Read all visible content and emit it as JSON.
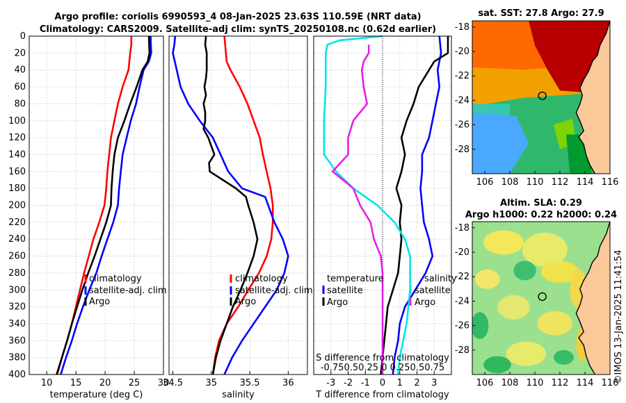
{
  "title_line1": "Argo profile: coriolis 6990593_4 08-Jan-2025 23.63S 110.59E (NRT data)",
  "title_line2": "Climatology: CARS2009. Satellite-adj clim: synTS_20250108.nc (0.62d earlier)",
  "footer": "©IMOS 13-Jan-2025 11:41:54",
  "colors": {
    "climatology": "#ff0000",
    "satellite": "#0000ff",
    "argo": "#000000",
    "s_satellite": "#00e5e5",
    "s_argo": "#e61ee6"
  },
  "chart_data": [
    {
      "id": "temperature",
      "type": "line",
      "xlabel": "temperature (deg C)",
      "ylabel": "depth",
      "xlim": [
        7,
        30
      ],
      "ylim": [
        0,
        400
      ],
      "xticks": [
        10,
        15,
        20,
        25,
        30
      ],
      "yticks": [
        0,
        20,
        40,
        60,
        80,
        100,
        120,
        140,
        160,
        180,
        200,
        220,
        240,
        260,
        280,
        300,
        320,
        340,
        360,
        380,
        400
      ],
      "legend": [
        "climatology",
        "satellite-adj. clim",
        "Argo"
      ],
      "series": [
        {
          "name": "climatology",
          "color": "#ff0000",
          "points": [
            [
              24.5,
              0
            ],
            [
              24.5,
              10
            ],
            [
              24.3,
              20
            ],
            [
              24.0,
              40
            ],
            [
              23.0,
              60
            ],
            [
              22.2,
              80
            ],
            [
              21.6,
              100
            ],
            [
              21.0,
              120
            ],
            [
              20.7,
              140
            ],
            [
              20.4,
              160
            ],
            [
              20.2,
              180
            ],
            [
              19.9,
              200
            ],
            [
              19.0,
              220
            ],
            [
              18.0,
              240
            ],
            [
              17.2,
              260
            ],
            [
              16.4,
              280
            ],
            [
              15.7,
              300
            ],
            [
              15.0,
              320
            ],
            [
              14.3,
              340
            ],
            [
              13.5,
              360
            ],
            [
              12.6,
              380
            ],
            [
              11.8,
              400
            ]
          ]
        },
        {
          "name": "satellite-adj. clim",
          "color": "#0000ff",
          "points": [
            [
              27.8,
              0
            ],
            [
              27.9,
              20
            ],
            [
              27.5,
              30
            ],
            [
              26.6,
              40
            ],
            [
              25.9,
              60
            ],
            [
              25.3,
              80
            ],
            [
              24.4,
              100
            ],
            [
              23.7,
              120
            ],
            [
              23.0,
              140
            ],
            [
              22.7,
              160
            ],
            [
              22.4,
              180
            ],
            [
              22.2,
              200
            ],
            [
              21.4,
              220
            ],
            [
              20.4,
              240
            ],
            [
              19.4,
              260
            ],
            [
              18.5,
              280
            ],
            [
              17.3,
              300
            ],
            [
              16.2,
              320
            ],
            [
              15.2,
              340
            ],
            [
              14.3,
              360
            ],
            [
              13.3,
              380
            ],
            [
              12.4,
              400
            ]
          ]
        },
        {
          "name": "Argo",
          "color": "#000000",
          "points": [
            [
              27.5,
              0
            ],
            [
              27.6,
              20
            ],
            [
              27.3,
              30
            ],
            [
              26.4,
              40
            ],
            [
              25.4,
              60
            ],
            [
              24.3,
              80
            ],
            [
              23.3,
              100
            ],
            [
              22.2,
              120
            ],
            [
              21.6,
              140
            ],
            [
              21.3,
              160
            ],
            [
              21.1,
              180
            ],
            [
              21.0,
              200
            ],
            [
              20.2,
              220
            ],
            [
              19.2,
              240
            ],
            [
              18.2,
              260
            ],
            [
              17.1,
              280
            ],
            [
              16.1,
              300
            ],
            [
              15.2,
              320
            ],
            [
              14.3,
              340
            ],
            [
              13.5,
              360
            ],
            [
              12.6,
              380
            ],
            [
              11.7,
              400
            ]
          ]
        }
      ]
    },
    {
      "id": "salinity",
      "type": "line",
      "xlabel": "salinity",
      "ylabel": "depth",
      "xlim": [
        34.45,
        36.25
      ],
      "ylim": [
        0,
        400
      ],
      "xticks": [
        34.5,
        35,
        35.5,
        36
      ],
      "xticklabels": [
        "34.5",
        "35",
        "35.5",
        "36"
      ],
      "legend": [
        "climatology",
        "satellite-adj. clim",
        "Argo"
      ],
      "series": [
        {
          "name": "climatology",
          "color": "#ff0000",
          "points": [
            [
              35.17,
              0
            ],
            [
              35.19,
              20
            ],
            [
              35.2,
              30
            ],
            [
              35.25,
              40
            ],
            [
              35.37,
              60
            ],
            [
              35.47,
              80
            ],
            [
              35.55,
              100
            ],
            [
              35.63,
              120
            ],
            [
              35.67,
              140
            ],
            [
              35.72,
              160
            ],
            [
              35.77,
              180
            ],
            [
              35.8,
              200
            ],
            [
              35.8,
              220
            ],
            [
              35.78,
              240
            ],
            [
              35.72,
              260
            ],
            [
              35.62,
              280
            ],
            [
              35.48,
              300
            ],
            [
              35.35,
              320
            ],
            [
              35.2,
              340
            ],
            [
              35.1,
              360
            ],
            [
              35.05,
              380
            ],
            [
              35.02,
              400
            ]
          ]
        },
        {
          "name": "satellite-adj. clim",
          "color": "#0000ff",
          "points": [
            [
              34.53,
              0
            ],
            [
              34.52,
              10
            ],
            [
              34.5,
              20
            ],
            [
              34.55,
              40
            ],
            [
              34.6,
              60
            ],
            [
              34.7,
              80
            ],
            [
              34.85,
              100
            ],
            [
              35.02,
              120
            ],
            [
              35.12,
              140
            ],
            [
              35.22,
              160
            ],
            [
              35.4,
              180
            ],
            [
              35.7,
              190
            ],
            [
              35.82,
              220
            ],
            [
              35.93,
              240
            ],
            [
              36.0,
              260
            ],
            [
              35.95,
              280
            ],
            [
              35.85,
              300
            ],
            [
              35.7,
              320
            ],
            [
              35.55,
              340
            ],
            [
              35.4,
              360
            ],
            [
              35.27,
              380
            ],
            [
              35.17,
              400
            ]
          ]
        },
        {
          "name": "Argo",
          "color": "#000000",
          "points": [
            [
              34.93,
              0
            ],
            [
              34.92,
              10
            ],
            [
              34.94,
              20
            ],
            [
              34.94,
              40
            ],
            [
              34.93,
              50
            ],
            [
              34.91,
              60
            ],
            [
              34.93,
              70
            ],
            [
              34.9,
              80
            ],
            [
              34.92,
              90
            ],
            [
              34.92,
              100
            ],
            [
              34.9,
              110
            ],
            [
              34.96,
              120
            ],
            [
              35.0,
              130
            ],
            [
              35.04,
              140
            ],
            [
              34.97,
              150
            ],
            [
              34.98,
              160
            ],
            [
              35.15,
              170
            ],
            [
              35.32,
              180
            ],
            [
              35.45,
              190
            ],
            [
              35.48,
              200
            ],
            [
              35.55,
              220
            ],
            [
              35.6,
              240
            ],
            [
              35.55,
              260
            ],
            [
              35.47,
              280
            ],
            [
              35.38,
              300
            ],
            [
              35.28,
              320
            ],
            [
              35.2,
              340
            ],
            [
              35.12,
              360
            ],
            [
              35.06,
              380
            ],
            [
              35.02,
              400
            ]
          ]
        }
      ]
    },
    {
      "id": "difference",
      "type": "line",
      "xlabel": "T difference from climatology",
      "ylabel": "depth",
      "xlim": [
        -4,
        4
      ],
      "ylim": [
        0,
        400
      ],
      "xticks": [
        -3,
        -2,
        -1,
        0,
        1,
        2,
        3
      ],
      "xticklabels": [
        "-3",
        "-2",
        "-1",
        "0",
        "1",
        "2",
        "3"
      ],
      "top_axis_label": "S difference from climatology",
      "top_axis_ticks": "-0.750.50.25 0 0.250.50.75",
      "legend_left_header": "temperature",
      "legend_right_header": "salinity",
      "legend_left": [
        "satellite",
        "Argo"
      ],
      "legend_right": [
        "satellite",
        "Argo"
      ],
      "series": [
        {
          "name": "T satellite",
          "color": "#0000ff",
          "points": [
            [
              3.3,
              0
            ],
            [
              3.4,
              20
            ],
            [
              3.2,
              40
            ],
            [
              3.3,
              60
            ],
            [
              3.1,
              80
            ],
            [
              2.9,
              100
            ],
            [
              2.7,
              120
            ],
            [
              2.3,
              140
            ],
            [
              2.3,
              160
            ],
            [
              2.2,
              180
            ],
            [
              2.3,
              200
            ],
            [
              2.4,
              220
            ],
            [
              2.7,
              240
            ],
            [
              2.9,
              260
            ],
            [
              2.5,
              280
            ],
            [
              1.9,
              300
            ],
            [
              1.3,
              320
            ],
            [
              1.0,
              340
            ],
            [
              0.9,
              360
            ],
            [
              0.7,
              380
            ],
            [
              0.6,
              400
            ]
          ]
        },
        {
          "name": "T Argo",
          "color": "#000000",
          "points": [
            [
              3.8,
              0
            ],
            [
              3.8,
              20
            ],
            [
              3.0,
              30
            ],
            [
              2.4,
              50
            ],
            [
              2.1,
              60
            ],
            [
              1.8,
              80
            ],
            [
              1.4,
              100
            ],
            [
              1.1,
              120
            ],
            [
              1.3,
              140
            ],
            [
              1.1,
              160
            ],
            [
              0.8,
              180
            ],
            [
              1.1,
              200
            ],
            [
              1.0,
              220
            ],
            [
              1.1,
              240
            ],
            [
              1.0,
              260
            ],
            [
              0.9,
              280
            ],
            [
              0.6,
              300
            ],
            [
              0.3,
              320
            ],
            [
              0.2,
              340
            ],
            [
              0.1,
              360
            ],
            [
              0.0,
              380
            ],
            [
              -0.1,
              400
            ]
          ]
        },
        {
          "name": "S satellite",
          "color": "#00e5e5",
          "points": [
            [
              0.0,
              0
            ],
            [
              -2.5,
              5
            ],
            [
              -3.2,
              10
            ],
            [
              -3.3,
              20
            ],
            [
              -3.3,
              60
            ],
            [
              -3.4,
              100
            ],
            [
              -3.4,
              140
            ],
            [
              -2.7,
              160
            ],
            [
              -1.7,
              180
            ],
            [
              -0.3,
              200
            ],
            [
              0.7,
              220
            ],
            [
              1.3,
              240
            ],
            [
              1.6,
              260
            ],
            [
              1.6,
              280
            ],
            [
              1.6,
              300
            ],
            [
              1.5,
              320
            ],
            [
              1.4,
              340
            ],
            [
              1.2,
              360
            ],
            [
              1.0,
              380
            ],
            [
              0.9,
              400
            ]
          ]
        },
        {
          "name": "S Argo",
          "color": "#e61ee6",
          "points": [
            [
              -0.8,
              10
            ],
            [
              -0.8,
              20
            ],
            [
              -1.1,
              30
            ],
            [
              -1.2,
              40
            ],
            [
              -1.1,
              60
            ],
            [
              -0.9,
              80
            ],
            [
              -1.7,
              100
            ],
            [
              -2.0,
              120
            ],
            [
              -2.0,
              140
            ],
            [
              -2.9,
              160
            ],
            [
              -1.7,
              180
            ],
            [
              -1.3,
              200
            ],
            [
              -0.7,
              220
            ],
            [
              -0.5,
              240
            ],
            [
              -0.1,
              260
            ],
            [
              0.0,
              280
            ],
            [
              0.0,
              300
            ],
            [
              0.0,
              320
            ],
            [
              0.0,
              340
            ],
            [
              0.0,
              360
            ],
            [
              0.0,
              380
            ],
            [
              0.0,
              400
            ]
          ]
        }
      ]
    },
    {
      "id": "sst-map",
      "type": "heatmap",
      "title": "sat. SST: 27.8 Argo: 27.9",
      "xlim": [
        105,
        116
      ],
      "ylim": [
        -30,
        -17.5
      ],
      "xticks": [
        106,
        108,
        110,
        112,
        114,
        116
      ],
      "yticks": [
        -18,
        -20,
        -22,
        -24,
        -26,
        -28
      ],
      "marker": [
        110.59,
        -23.63
      ]
    },
    {
      "id": "sla-map",
      "type": "heatmap",
      "title": "Altim. SLA: 0.29",
      "subtitle": "Argo h1000: 0.22 h2000: 0.24",
      "xlim": [
        105,
        116
      ],
      "ylim": [
        -30,
        -17.5
      ],
      "xticks": [
        106,
        108,
        110,
        112,
        114,
        116
      ],
      "yticks": [
        -18,
        -20,
        -22,
        -24,
        -26,
        -28
      ],
      "marker": [
        110.59,
        -23.63
      ]
    }
  ]
}
